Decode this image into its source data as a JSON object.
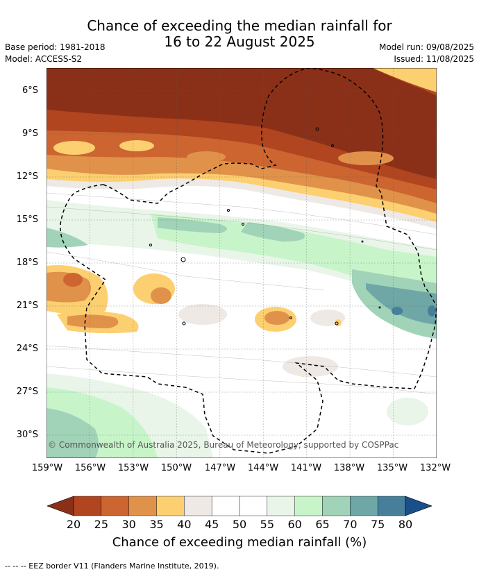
{
  "title": {
    "line1": "Chance of exceeding the median rainfall for",
    "line2": "16 to 22 August 2025"
  },
  "meta": {
    "base_period": "Base period: 1981-2018",
    "model": "Model: ACCESS-S2",
    "model_run": "Model run: 09/08/2025",
    "issued": "Issued: 11/08/2025"
  },
  "copyright": "© Commonwealth of Australia 2025, Bureau of Meteorology, supported by COSPPac",
  "lat_labels": [
    "6°S",
    "9°S",
    "12°S",
    "15°S",
    "18°S",
    "21°S",
    "24°S",
    "27°S",
    "30°S"
  ],
  "lon_labels": [
    "159°W",
    "156°W",
    "153°W",
    "150°W",
    "147°W",
    "144°W",
    "141°W",
    "138°W",
    "135°W",
    "132°W"
  ],
  "colorbar": {
    "title": "Chance of exceeding median rainfall (%)",
    "ticks": [
      "20",
      "25",
      "30",
      "35",
      "40",
      "45",
      "50",
      "55",
      "60",
      "65",
      "70",
      "75",
      "80"
    ],
    "colors": [
      "#8b3018",
      "#b0451f",
      "#cc6530",
      "#e1924a",
      "#fccf70",
      "#eee9e5",
      "#ffffff",
      "#ffffff",
      "#e8f5e8",
      "#c7f5c9",
      "#a0d3b8",
      "#6fa7a7",
      "#477f9b",
      "#1a4f8c"
    ]
  },
  "footer": "-- -- -- EEZ border V11 (Flanders Marine Institute, 2019)."
}
